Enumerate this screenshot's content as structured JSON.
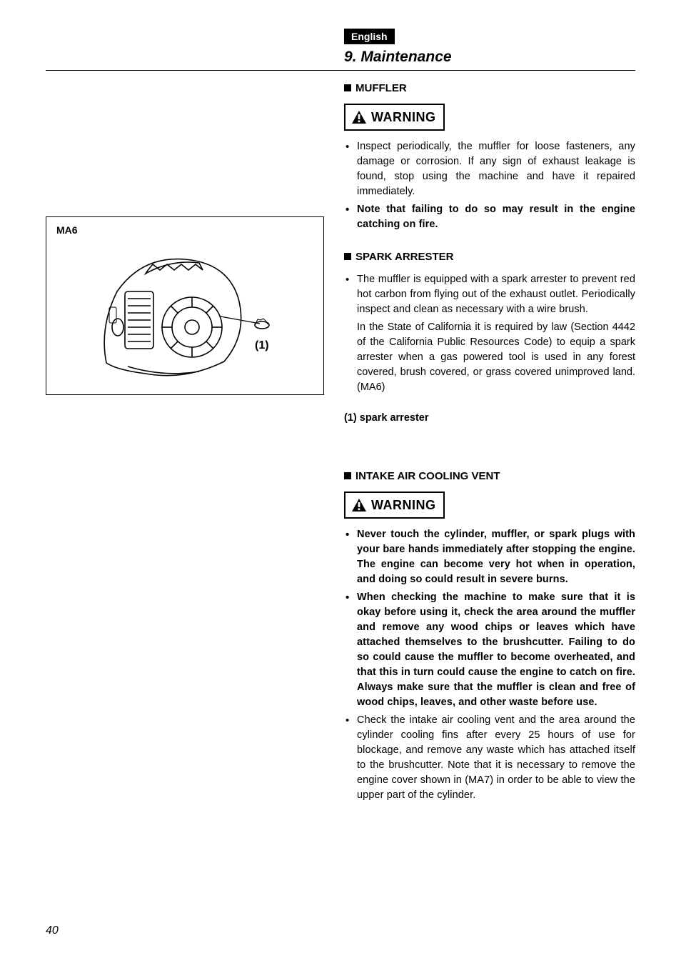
{
  "page_number": "40",
  "language_badge": "English",
  "section_title": "9. Maintenance",
  "figure": {
    "label": "MA6",
    "callout": "(1)"
  },
  "headings": {
    "muffler": "MUFFLER",
    "spark_arrester": "SPARK ARRESTER",
    "intake": "INTAKE AIR COOLING VENT"
  },
  "warning_label": "WARNING",
  "muffler_bullets": [
    "Inspect periodically, the muffler for loose fasteners, any damage or corrosion. If any sign of exhaust leakage is found, stop using the machine and have it repaired immediately.",
    "Note that failing to do so may result in the engine catching on fire."
  ],
  "spark_bullet": "The muffler is equipped with a spark arrester to prevent red hot carbon from flying out of the exhaust outlet. Periodically inspect and clean as necessary with a wire brush.",
  "spark_para": "In the State of California it is required by law (Section 4442 of the California Public Resources Code) to equip a spark arrester when a gas powered tool is used in any forest covered, brush covered, or grass covered unimproved land. (MA6)",
  "callout_ref": "(1) spark arrester",
  "intake_bullets": [
    "Never touch the cylinder, muffler, or spark plugs with your bare hands immediately after stopping the engine.  The engine can become very hot when in operation, and doing so could result in severe burns.",
    "When checking the machine to make sure that it is okay before using it, check the area around the muffler and remove any wood chips or leaves which have attached themselves to the brushcutter. Failing to do so could cause the muffler to become overheated, and that this in turn could cause the engine to catch on fire. Always make sure that the muffler is clean and free of wood chips, leaves, and other waste before use.",
    "Check the intake air cooling vent and the area around the cylinder cooling fins after every 25 hours of use for blockage, and remove any waste which has attached itself to the brushcutter. Note that it is necessary to remove the engine cover shown in (MA7) in order to be able to view the upper part of the cylinder."
  ],
  "intake_bold_flags": [
    true,
    true,
    false
  ],
  "muffler_bold_flags": [
    false,
    true
  ]
}
